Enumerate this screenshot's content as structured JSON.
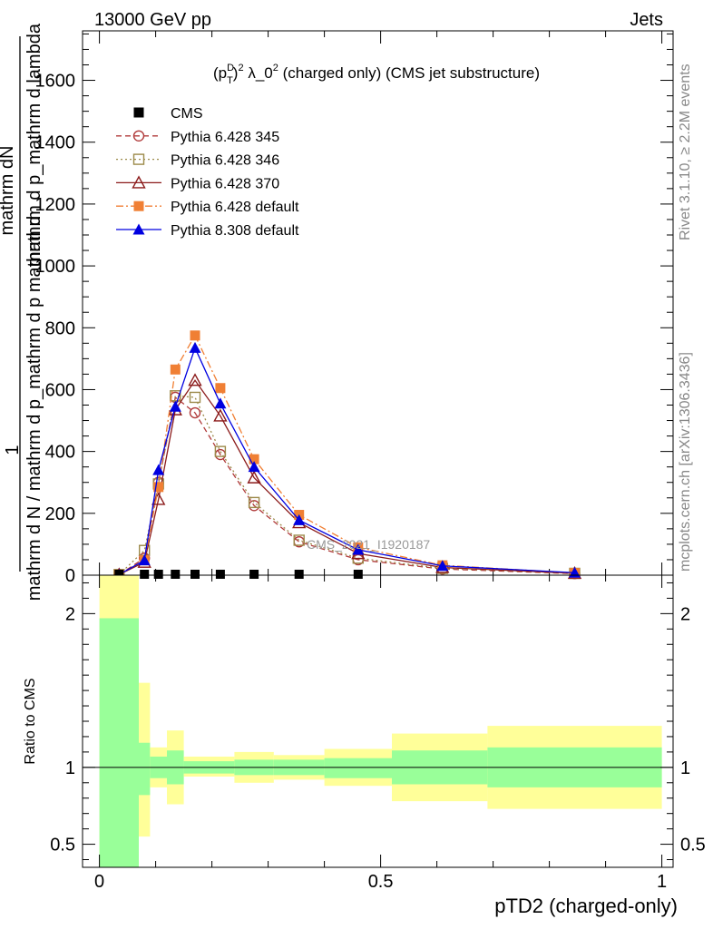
{
  "header": {
    "left": "13000 GeV pp",
    "right": "Jets"
  },
  "side_labels": {
    "rivet": "Rivet 3.1.10, ≥ 2.2M events",
    "mcplots": "mcplots.cern.ch [arXiv:1306.3436]"
  },
  "watermark": "CMS_2021_I1920187",
  "colors": {
    "cms": "#000000",
    "p345": "#b03a3a",
    "p346": "#9c8a4a",
    "p370": "#8b1a1a",
    "p6def": "#f07f34",
    "p8def": "#0000e0",
    "band_inner": "#99ff99",
    "band_outer": "#ffff99"
  },
  "chart_data": [
    {
      "type": "line",
      "title_parts": {
        "p": "(p",
        "sup_d": "D",
        "sub_t": "T",
        "close": ")",
        "sup_2": "2",
        "lambda": " λ_0",
        "sup_2b": "2",
        "rest": " (charged only) (CMS jet substructure)"
      },
      "ylabel_top": "1",
      "ylabel_num": "mathrm dN",
      "ylabel_den2": "mathrm d p_mathrm d lambda",
      "ylabel_den1": "mathrm d N / mathrm d p_mathrm d p mathrm d",
      "xlim": [
        -0.03,
        1.02
      ],
      "ylim": [
        0,
        1760
      ],
      "y_ticks": [
        0,
        200,
        400,
        600,
        800,
        1000,
        1200,
        1400,
        1600
      ],
      "y_tick_labels": [
        "0",
        "200",
        "400",
        "600",
        "800",
        "1000",
        "1200",
        "1400",
        "1600"
      ],
      "legend_position": "top-left",
      "series": [
        {
          "name": "CMS",
          "key": "cms",
          "x": [
            0.035,
            0.08,
            0.105,
            0.135,
            0.17,
            0.215,
            0.275,
            0.355,
            0.46
          ],
          "values": [
            3,
            3,
            3,
            3,
            3,
            3,
            3,
            3,
            3
          ]
        },
        {
          "name": "Pythia 6.428 345",
          "key": "p345",
          "x": [
            0.035,
            0.08,
            0.105,
            0.135,
            0.17,
            0.215,
            0.275,
            0.355,
            0.46,
            0.61,
            0.845
          ],
          "values": [
            2,
            55,
            300,
            575,
            525,
            390,
            225,
            108,
            50,
            20,
            5
          ]
        },
        {
          "name": "Pythia 6.428 346",
          "key": "p346",
          "x": [
            0.035,
            0.08,
            0.105,
            0.135,
            0.17,
            0.215,
            0.275,
            0.355,
            0.46,
            0.61,
            0.845
          ],
          "values": [
            2,
            80,
            295,
            580,
            575,
            400,
            235,
            113,
            55,
            22,
            6
          ]
        },
        {
          "name": "Pythia 6.428 370",
          "key": "p370",
          "x": [
            0.035,
            0.08,
            0.105,
            0.135,
            0.17,
            0.215,
            0.275,
            0.355,
            0.46,
            0.61,
            0.845
          ],
          "values": [
            2,
            42,
            245,
            535,
            630,
            515,
            315,
            170,
            70,
            25,
            6
          ]
        },
        {
          "name": "Pythia 6.428 default",
          "key": "p6def",
          "x": [
            0.035,
            0.08,
            0.105,
            0.135,
            0.17,
            0.215,
            0.275,
            0.355,
            0.46,
            0.61,
            0.845
          ],
          "values": [
            2,
            48,
            285,
            665,
            775,
            605,
            375,
            195,
            90,
            32,
            7
          ]
        },
        {
          "name": "Pythia 8.308 default",
          "key": "p8def",
          "x": [
            0.035,
            0.08,
            0.105,
            0.135,
            0.17,
            0.215,
            0.275,
            0.355,
            0.46,
            0.61,
            0.845
          ],
          "values": [
            2,
            48,
            340,
            545,
            735,
            555,
            350,
            178,
            82,
            30,
            8
          ]
        }
      ]
    },
    {
      "type": "area",
      "ylabel": "Ratio to CMS",
      "xlabel": "pTD2 (charged-only)",
      "xlim": [
        -0.03,
        1.02
      ],
      "ylim": [
        0.35,
        2.25
      ],
      "y_ticks": [
        0.5,
        1,
        2
      ],
      "y_tick_labels": [
        "0.5",
        "1",
        "2"
      ],
      "x_ticks": [
        0,
        0.5,
        1
      ],
      "x_tick_labels": [
        "0",
        "0.5",
        "1"
      ],
      "reference_line": 1,
      "bins": [
        {
          "x0": 0.0,
          "x1": 0.07,
          "in_lo": 0.35,
          "in_hi": 1.97,
          "out_lo": 0.35,
          "out_hi": 2.25
        },
        {
          "x0": 0.07,
          "x1": 0.09,
          "in_lo": 0.82,
          "in_hi": 1.16,
          "out_lo": 0.55,
          "out_hi": 1.55
        },
        {
          "x0": 0.09,
          "x1": 0.12,
          "in_lo": 0.93,
          "in_hi": 1.07,
          "out_lo": 0.87,
          "out_hi": 1.13
        },
        {
          "x0": 0.12,
          "x1": 0.15,
          "in_lo": 0.89,
          "in_hi": 1.11,
          "out_lo": 0.76,
          "out_hi": 1.24
        },
        {
          "x0": 0.15,
          "x1": 0.24,
          "in_lo": 0.96,
          "in_hi": 1.04,
          "out_lo": 0.94,
          "out_hi": 1.07
        },
        {
          "x0": 0.24,
          "x1": 0.31,
          "in_lo": 0.95,
          "in_hi": 1.05,
          "out_lo": 0.9,
          "out_hi": 1.1
        },
        {
          "x0": 0.31,
          "x1": 0.4,
          "in_lo": 0.95,
          "in_hi": 1.05,
          "out_lo": 0.92,
          "out_hi": 1.08
        },
        {
          "x0": 0.4,
          "x1": 0.52,
          "in_lo": 0.93,
          "in_hi": 1.06,
          "out_lo": 0.88,
          "out_hi": 1.12
        },
        {
          "x0": 0.52,
          "x1": 0.69,
          "in_lo": 0.89,
          "in_hi": 1.11,
          "out_lo": 0.78,
          "out_hi": 1.22
        },
        {
          "x0": 0.69,
          "x1": 1.0,
          "in_lo": 0.87,
          "in_hi": 1.13,
          "out_lo": 0.73,
          "out_hi": 1.27
        }
      ]
    }
  ]
}
